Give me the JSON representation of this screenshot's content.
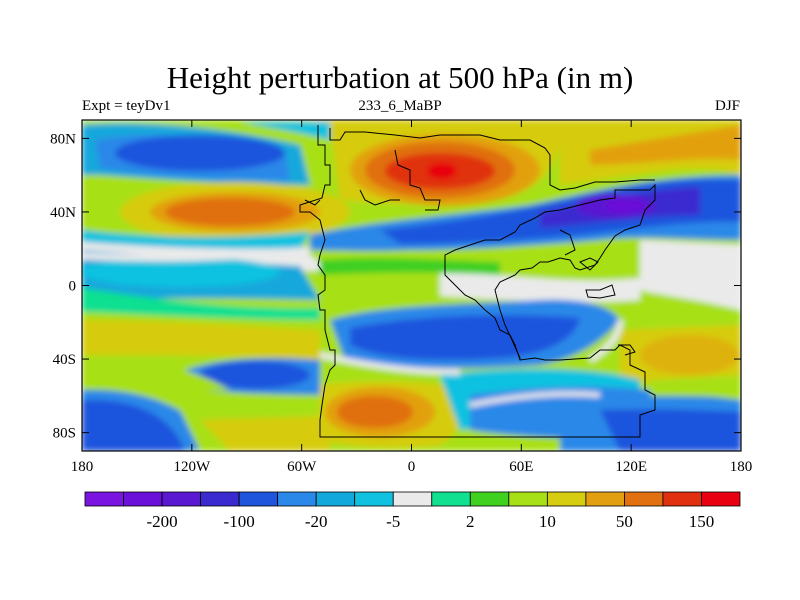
{
  "title": "Height perturbation at 500 hPa (in m)",
  "subtitle_left": "Expt = teyDv1",
  "subtitle_center": "233_6_MaBP",
  "subtitle_right": "DJF",
  "lat_ticks": [
    {
      "value": 80,
      "label": "80N"
    },
    {
      "value": 40,
      "label": "40N"
    },
    {
      "value": 0,
      "label": "0"
    },
    {
      "value": -40,
      "label": "40S"
    },
    {
      "value": -80,
      "label": "80S"
    }
  ],
  "lon_ticks": [
    {
      "value": -180,
      "label": "180"
    },
    {
      "value": -120,
      "label": "120W"
    },
    {
      "value": -60,
      "label": "60W"
    },
    {
      "value": 0,
      "label": "0"
    },
    {
      "value": 60,
      "label": "60E"
    },
    {
      "value": 120,
      "label": "120E"
    },
    {
      "value": 180,
      "label": "180"
    }
  ],
  "colorbar": {
    "colors": [
      "#7a14e0",
      "#6a10d8",
      "#5a18d0",
      "#3a2ad0",
      "#1f55dd",
      "#2a88e8",
      "#12a8dc",
      "#10c2e0",
      "#eaeaea",
      "#10e090",
      "#40d020",
      "#a8e018",
      "#d6cc10",
      "#e2a010",
      "#e07010",
      "#e03010",
      "#e80010"
    ],
    "labels": [
      {
        "after_box": 2,
        "text": "-200"
      },
      {
        "after_box": 4,
        "text": "-100"
      },
      {
        "after_box": 6,
        "text": "-20"
      },
      {
        "after_box": 8,
        "text": "-5"
      },
      {
        "after_box": 10,
        "text": "2"
      },
      {
        "after_box": 12,
        "text": "10"
      },
      {
        "after_box": 14,
        "text": "50"
      },
      {
        "after_box": 16,
        "text": "150"
      }
    ]
  }
}
